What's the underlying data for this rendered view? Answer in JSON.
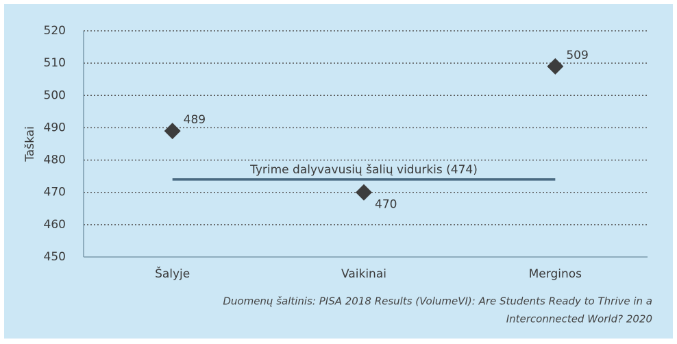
{
  "chart_data": {
    "type": "scatter",
    "y_label": "Taškai",
    "categories": [
      "Šalyje",
      "Vaikinai",
      "Merginos"
    ],
    "values": [
      489,
      470,
      509
    ],
    "color": "#3d3d3d",
    "ylim": [
      450,
      520
    ],
    "yticks": [
      450,
      460,
      470,
      480,
      490,
      500,
      510,
      520
    ],
    "grid": true,
    "reference": {
      "value": 474,
      "label": "Tyrime dalyvavusių šalių vidurkis (474)",
      "color": "#4a6a82"
    },
    "source": [
      "Duomenų šaltinis: PISA 2018 Results (VolumeVI): Are Students Ready to Thrive in a",
      "Interconnected World? 2020"
    ]
  }
}
